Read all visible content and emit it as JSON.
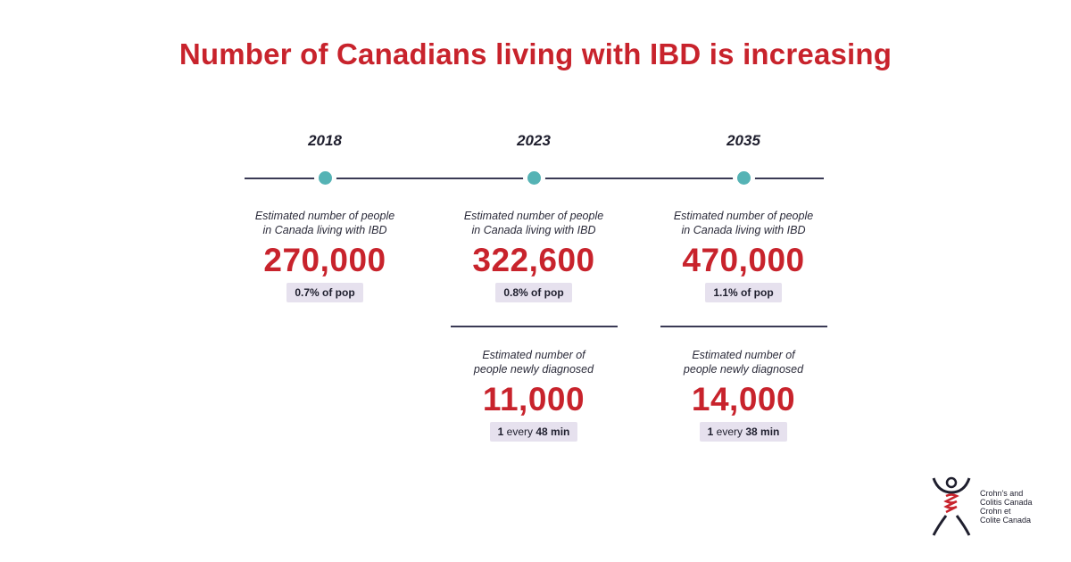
{
  "title": "Number of Canadians living with IBD is increasing",
  "timeline": [
    {
      "year": "2018",
      "prevalence_caption_line1": "Estimated number of people",
      "prevalence_caption_line2": "in Canada living with IBD",
      "prevalence_value": "270,000",
      "prevalence_badge": "0.7% of pop"
    },
    {
      "year": "2023",
      "prevalence_caption_line1": "Estimated number of people",
      "prevalence_caption_line2": "in Canada living with IBD",
      "prevalence_value": "322,600",
      "prevalence_badge": "0.8% of pop",
      "incidence_caption_line1": "Estimated number of",
      "incidence_caption_line2": "people newly diagnosed",
      "incidence_value": "11,000",
      "incidence_badge_count": "1",
      "incidence_badge_word": "every",
      "incidence_badge_interval": "48 min"
    },
    {
      "year": "2035",
      "prevalence_caption_line1": "Estimated number of people",
      "prevalence_caption_line2": "in Canada living with IBD",
      "prevalence_value": "470,000",
      "prevalence_badge": "1.1% of pop",
      "incidence_caption_line1": "Estimated number of",
      "incidence_caption_line2": "people newly diagnosed",
      "incidence_value": "14,000",
      "incidence_badge_count": "1",
      "incidence_badge_word": "every",
      "incidence_badge_interval": "38 min"
    }
  ],
  "logo": {
    "line1": "Crohn's and",
    "line2": "Colitis Canada",
    "line3": "Crohn et",
    "line4": "Colite Canada"
  },
  "colors": {
    "accent_red": "#c8232c",
    "dot_teal": "#55b3b5",
    "badge_bg": "#e6e1ee",
    "line": "#3a3a55"
  }
}
